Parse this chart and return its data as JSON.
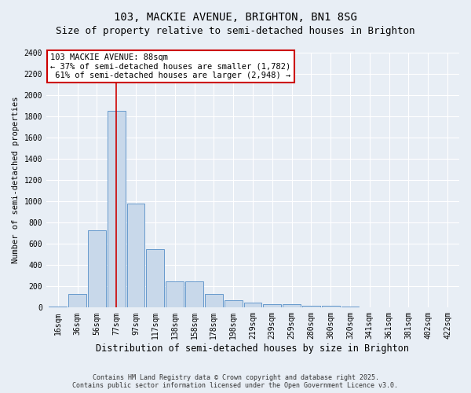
{
  "title1": "103, MACKIE AVENUE, BRIGHTON, BN1 8SG",
  "title2": "Size of property relative to semi-detached houses in Brighton",
  "xlabel": "Distribution of semi-detached houses by size in Brighton",
  "ylabel": "Number of semi-detached properties",
  "bin_labels": [
    "16sqm",
    "36sqm",
    "56sqm",
    "77sqm",
    "97sqm",
    "117sqm",
    "138sqm",
    "158sqm",
    "178sqm",
    "198sqm",
    "219sqm",
    "239sqm",
    "259sqm",
    "280sqm",
    "300sqm",
    "320sqm",
    "341sqm",
    "361sqm",
    "381sqm",
    "402sqm",
    "422sqm"
  ],
  "bar_heights": [
    10,
    130,
    730,
    1850,
    980,
    550,
    245,
    245,
    130,
    70,
    45,
    30,
    30,
    20,
    15,
    10,
    5,
    5,
    5,
    5,
    5
  ],
  "bar_color": "#c8d8ea",
  "bar_edge_color": "#6699cc",
  "bar_edge_width": 0.7,
  "highlight_bar_index": 3,
  "property_name": "103 MACKIE AVENUE: 88sqm",
  "pct_smaller": 37,
  "pct_larger": 61,
  "n_smaller": 1782,
  "n_larger": 2948,
  "annotation_box_color": "#ffffff",
  "annotation_box_edge_color": "#cc0000",
  "vline_color": "#cc0000",
  "ylim": [
    0,
    2400
  ],
  "yticks": [
    0,
    200,
    400,
    600,
    800,
    1000,
    1200,
    1400,
    1600,
    1800,
    2000,
    2200,
    2400
  ],
  "background_color": "#e8eef5",
  "grid_color": "#ffffff",
  "title1_fontsize": 10,
  "title2_fontsize": 9,
  "xlabel_fontsize": 8.5,
  "ylabel_fontsize": 7.5,
  "tick_fontsize": 7,
  "annot_fontsize": 7.5,
  "footer1": "Contains HM Land Registry data © Crown copyright and database right 2025.",
  "footer2": "Contains public sector information licensed under the Open Government Licence v3.0."
}
